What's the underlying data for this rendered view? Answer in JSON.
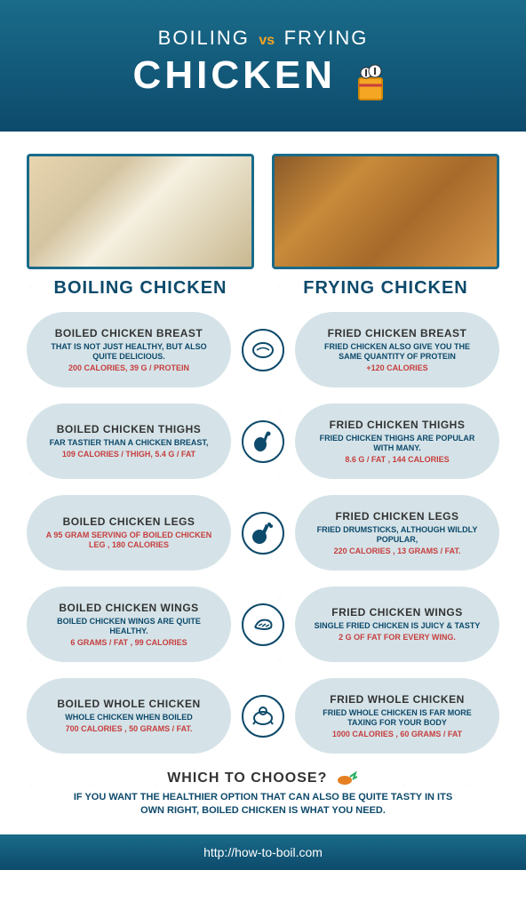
{
  "header": {
    "boiling": "BOILING",
    "vs": "vs",
    "frying": "FRYING",
    "chicken": "CHICKEN",
    "bg_gradient": [
      "#1a6b8a",
      "#0d4a6b"
    ]
  },
  "col_titles": {
    "left": "BOILING CHICKEN",
    "right": "FRYING CHICKEN"
  },
  "rows": [
    {
      "icon": "breast",
      "left": {
        "title": "BOILED CHICKEN BREAST",
        "desc": "THAT IS NOT JUST HEALTHY, BUT ALSO QUITE DELICIOUS.",
        "stat": "200 CALORIES, 39 G / PROTEIN"
      },
      "right": {
        "title": "FRIED CHICKEN BREAST",
        "desc": "FRIED CHICKEN ALSO GIVE YOU THE SAME QUANTITY OF PROTEIN",
        "stat": "+120 CALORIES"
      }
    },
    {
      "icon": "thigh",
      "left": {
        "title": "BOILED CHICKEN THIGHS",
        "desc": "FAR TASTIER THAN A CHICKEN BREAST,",
        "stat": "109 CALORIES / THIGH, 5.4 G / FAT"
      },
      "right": {
        "title": "FRIED CHICKEN THIGHS",
        "desc": "FRIED CHICKEN THIGHS ARE POPULAR WITH MANY.",
        "stat": "8.6 G / FAT , 144 CALORIES"
      }
    },
    {
      "icon": "leg",
      "left": {
        "title": "BOILED CHICKEN LEGS",
        "desc": "",
        "stat": "A 95 GRAM SERVING OF BOILED CHICKEN LEG , 180 CALORIES"
      },
      "right": {
        "title": "FRIED CHICKEN LEGS",
        "desc": "FRIED DRUMSTICKS, ALTHOUGH WILDLY POPULAR,",
        "stat": "220 CALORIES , 13 GRAMS / FAT."
      }
    },
    {
      "icon": "wing",
      "left": {
        "title": "BOILED CHICKEN WINGS",
        "desc": "BOILED CHICKEN WINGS ARE QUITE HEALTHY.",
        "stat": "6 GRAMS / FAT , 99 CALORIES"
      },
      "right": {
        "title": "FRIED CHICKEN WINGS",
        "desc": "SINGLE FRIED CHICKEN IS JUICY & TASTY",
        "stat": "2 G OF FAT FOR EVERY WING."
      }
    },
    {
      "icon": "whole",
      "left": {
        "title": "BOILED WHOLE CHICKEN",
        "desc": "WHOLE CHICKEN WHEN BOILED",
        "stat": "700 CALORIES , 50 GRAMS / FAT."
      },
      "right": {
        "title": "FRIED WHOLE CHICKEN",
        "desc": "FRIED WHOLE CHICKEN IS FAR MORE TAXING FOR YOUR BODY",
        "stat": "1000 CALORIES , 60 GRAMS / FAT"
      }
    }
  ],
  "footer": {
    "question": "WHICH TO CHOOSE?",
    "text": "IF YOU WANT THE HEALTHIER OPTION THAT CAN ALSO BE QUITE TASTY IN ITS OWN RIGHT, BOILED CHICKEN IS WHAT YOU NEED.",
    "url": "http://how-to-boil.com"
  },
  "colors": {
    "primary": "#0d4a6b",
    "accent": "#f5a623",
    "card_bg": "#d5e3e8",
    "stat_red": "#c73e3e",
    "desc_blue": "#0d4a6b"
  }
}
